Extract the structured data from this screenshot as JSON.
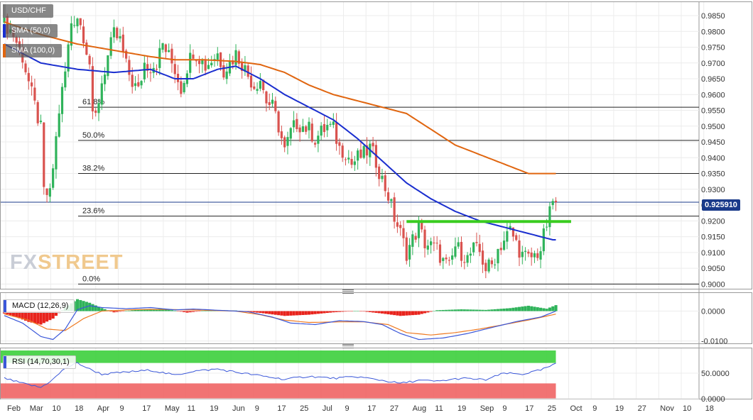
{
  "symbol": "USD/CHF",
  "legend": {
    "sma50": {
      "label": "SMA (50,0)",
      "color": "#1a2ecf"
    },
    "sma100": {
      "label": "SMA (100,0)",
      "color": "#e0650f"
    },
    "macd": {
      "label": "MACD (12,26,9)"
    },
    "rsi": {
      "label": "RSI (14,70,30,1)"
    }
  },
  "watermark": {
    "part1": "FX",
    "part2": "STREET"
  },
  "last_price": "0.925910",
  "colors": {
    "bull": "#2fb35a",
    "bear": "#d9534f",
    "support": "#39cc1f",
    "macd_line": "#3a57d9",
    "signal_line": "#ef7a22",
    "rsi_line": "#3a57d9",
    "rsi_over": "#3ccf3c",
    "rsi_under": "#f06464",
    "price_tag": "#1a3a8a"
  },
  "x_ticks": [
    "Feb",
    "Mar",
    "10",
    "18",
    "Apr",
    "9",
    "17",
    "May",
    "11",
    "19",
    "Jun",
    "9",
    "17",
    "25",
    "Jul",
    "9",
    "17",
    "27",
    "Aug",
    "11",
    "19",
    "Sep",
    "9",
    "17",
    "25",
    "Oct",
    "9",
    "19",
    "27",
    "Nov",
    "10",
    "18"
  ],
  "chart_data": [
    {
      "type": "candlestick",
      "title": "USD/CHF",
      "ylim": [
        0.8985,
        0.9895
      ],
      "y_ticks": [
        "0.9850",
        "0.9800",
        "0.9750",
        "0.9700",
        "0.9650",
        "0.9600",
        "0.9550",
        "0.9500",
        "0.9450",
        "0.9400",
        "0.9350",
        "0.9300",
        "0.9250",
        "0.9200",
        "0.9150",
        "0.9100",
        "0.9050",
        "0.9000"
      ],
      "fibonacci": [
        {
          "label": "61.8%",
          "value": 0.956
        },
        {
          "label": "50.0%",
          "value": 0.9455
        },
        {
          "label": "38.2%",
          "value": 0.935
        },
        {
          "label": "23.6%",
          "value": 0.9215
        },
        {
          "label": "0.0%",
          "value": 0.9
        }
      ],
      "support_line": {
        "value": 0.9198,
        "from_day": 132,
        "to_day": 186
      },
      "current_price": 0.92591,
      "ohlc_anchors": [
        [
          0,
          0.983
        ],
        [
          3,
          0.979
        ],
        [
          6,
          0.972
        ],
        [
          9,
          0.96
        ],
        [
          12,
          0.949
        ],
        [
          13,
          0.929
        ],
        [
          15,
          0.928
        ],
        [
          18,
          0.955
        ],
        [
          20,
          0.967
        ],
        [
          22,
          0.983
        ],
        [
          24,
          0.985
        ],
        [
          26,
          0.979
        ],
        [
          28,
          0.97
        ],
        [
          29,
          0.952
        ],
        [
          30,
          0.953
        ],
        [
          32,
          0.964
        ],
        [
          34,
          0.972
        ],
        [
          36,
          0.979
        ],
        [
          38,
          0.977
        ],
        [
          40,
          0.969
        ],
        [
          42,
          0.964
        ],
        [
          44,
          0.961
        ],
        [
          46,
          0.97
        ],
        [
          48,
          0.969
        ],
        [
          50,
          0.97
        ],
        [
          52,
          0.976
        ],
        [
          54,
          0.972
        ],
        [
          56,
          0.968
        ],
        [
          58,
          0.962
        ],
        [
          60,
          0.969
        ],
        [
          62,
          0.974
        ],
        [
          64,
          0.972
        ],
        [
          66,
          0.969
        ],
        [
          68,
          0.971
        ],
        [
          70,
          0.973
        ],
        [
          72,
          0.968
        ],
        [
          74,
          0.97
        ],
        [
          76,
          0.973
        ],
        [
          78,
          0.97
        ],
        [
          80,
          0.966
        ],
        [
          82,
          0.963
        ],
        [
          84,
          0.965
        ],
        [
          86,
          0.958
        ],
        [
          88,
          0.956
        ],
        [
          90,
          0.95
        ],
        [
          92,
          0.942
        ],
        [
          94,
          0.948
        ],
        [
          96,
          0.951
        ],
        [
          98,
          0.95
        ],
        [
          100,
          0.949
        ],
        [
          102,
          0.946
        ],
        [
          104,
          0.948
        ],
        [
          106,
          0.95
        ],
        [
          108,
          0.949
        ],
        [
          110,
          0.943
        ],
        [
          112,
          0.942
        ],
        [
          114,
          0.938
        ],
        [
          116,
          0.94
        ],
        [
          118,
          0.941
        ],
        [
          120,
          0.943
        ],
        [
          122,
          0.939
        ],
        [
          124,
          0.933
        ],
        [
          126,
          0.928
        ],
        [
          128,
          0.921
        ],
        [
          130,
          0.916
        ],
        [
          132,
          0.91
        ],
        [
          134,
          0.914
        ],
        [
          136,
          0.918
        ],
        [
          138,
          0.913
        ],
        [
          140,
          0.912
        ],
        [
          142,
          0.911
        ],
        [
          144,
          0.907
        ],
        [
          146,
          0.905
        ],
        [
          148,
          0.912
        ],
        [
          150,
          0.91
        ],
        [
          152,
          0.908
        ],
        [
          154,
          0.911
        ],
        [
          156,
          0.91
        ],
        [
          158,
          0.905
        ],
        [
          160,
          0.906
        ],
        [
          162,
          0.911
        ],
        [
          164,
          0.914
        ],
        [
          166,
          0.917
        ],
        [
          168,
          0.913
        ],
        [
          170,
          0.909
        ],
        [
          172,
          0.908
        ],
        [
          174,
          0.909
        ],
        [
          176,
          0.911
        ],
        [
          177,
          0.915
        ],
        [
          178,
          0.919
        ],
        [
          179,
          0.922
        ],
        [
          180,
          0.9265
        ],
        [
          181,
          0.92591
        ]
      ],
      "sma50_anchors": [
        [
          0,
          0.976
        ],
        [
          12,
          0.97
        ],
        [
          24,
          0.968
        ],
        [
          36,
          0.967
        ],
        [
          48,
          0.968
        ],
        [
          56,
          0.965
        ],
        [
          62,
          0.965
        ],
        [
          70,
          0.968
        ],
        [
          76,
          0.969
        ],
        [
          84,
          0.965
        ],
        [
          92,
          0.96
        ],
        [
          100,
          0.956
        ],
        [
          108,
          0.952
        ],
        [
          116,
          0.946
        ],
        [
          124,
          0.939
        ],
        [
          132,
          0.932
        ],
        [
          140,
          0.927
        ],
        [
          148,
          0.923
        ],
        [
          156,
          0.92
        ],
        [
          164,
          0.918
        ],
        [
          172,
          0.916
        ],
        [
          180,
          0.914
        ]
      ],
      "sma100_anchors": [
        [
          0,
          0.983
        ],
        [
          12,
          0.979
        ],
        [
          24,
          0.976
        ],
        [
          36,
          0.974
        ],
        [
          48,
          0.972
        ],
        [
          56,
          0.971
        ],
        [
          66,
          0.971
        ],
        [
          76,
          0.9705
        ],
        [
          84,
          0.9695
        ],
        [
          92,
          0.967
        ],
        [
          100,
          0.963
        ],
        [
          108,
          0.96
        ],
        [
          116,
          0.958
        ],
        [
          124,
          0.956
        ],
        [
          132,
          0.954
        ],
        [
          140,
          0.949
        ],
        [
          148,
          0.944
        ],
        [
          156,
          0.941
        ],
        [
          164,
          0.938
        ],
        [
          172,
          0.935
        ],
        [
          180,
          0.935
        ]
      ]
    },
    {
      "type": "bar",
      "title": "MACD (12,26,9)",
      "ylim": [
        -0.0108,
        0.0063
      ],
      "y_ticks": [
        "0.0000",
        "-0.0100"
      ],
      "histogram_anchors": [
        [
          0,
          -0.0008
        ],
        [
          4,
          -0.002
        ],
        [
          8,
          -0.0036
        ],
        [
          12,
          -0.0045
        ],
        [
          16,
          -0.0025
        ],
        [
          20,
          0.0012
        ],
        [
          24,
          0.004
        ],
        [
          28,
          0.0028
        ],
        [
          32,
          0.001
        ],
        [
          36,
          -0.0004
        ],
        [
          44,
          0.0005
        ],
        [
          52,
          0.0008
        ],
        [
          60,
          -0.0005
        ],
        [
          68,
          0.0004
        ],
        [
          76,
          0.0002
        ],
        [
          84,
          -0.0006
        ],
        [
          92,
          -0.0016
        ],
        [
          100,
          -0.0012
        ],
        [
          108,
          -0.0004
        ],
        [
          116,
          0.0001
        ],
        [
          124,
          -0.0008
        ],
        [
          130,
          -0.0016
        ],
        [
          136,
          -0.0012
        ],
        [
          142,
          0.0003
        ],
        [
          150,
          0.0006
        ],
        [
          158,
          0.0004
        ],
        [
          166,
          0.001
        ],
        [
          172,
          0.0018
        ],
        [
          178,
          0.0008
        ],
        [
          181,
          0.002
        ]
      ],
      "macd_anchors": [
        [
          0,
          -0.0015
        ],
        [
          6,
          -0.004
        ],
        [
          12,
          -0.0085
        ],
        [
          16,
          -0.0095
        ],
        [
          20,
          -0.006
        ],
        [
          24,
          0.0005
        ],
        [
          28,
          0.0018
        ],
        [
          32,
          0.0012
        ],
        [
          40,
          0.0008
        ],
        [
          48,
          0.0012
        ],
        [
          56,
          0.0004
        ],
        [
          62,
          0.0007
        ],
        [
          72,
          0.0002
        ],
        [
          80,
          -0.0002
        ],
        [
          88,
          -0.002
        ],
        [
          94,
          -0.004
        ],
        [
          102,
          -0.0045
        ],
        [
          110,
          -0.0032
        ],
        [
          118,
          -0.0035
        ],
        [
          124,
          -0.0045
        ],
        [
          130,
          -0.0075
        ],
        [
          136,
          -0.0095
        ],
        [
          144,
          -0.009
        ],
        [
          152,
          -0.0075
        ],
        [
          160,
          -0.0055
        ],
        [
          168,
          -0.0035
        ],
        [
          176,
          -0.002
        ],
        [
          181,
          0.0
        ]
      ],
      "signal_anchors": [
        [
          0,
          -0.001
        ],
        [
          8,
          -0.003
        ],
        [
          14,
          -0.006
        ],
        [
          20,
          -0.0065
        ],
        [
          26,
          -0.0025
        ],
        [
          32,
          0.0
        ],
        [
          40,
          0.0004
        ],
        [
          48,
          0.0006
        ],
        [
          56,
          0.0005
        ],
        [
          66,
          0.0003
        ],
        [
          76,
          0.0
        ],
        [
          84,
          -0.0012
        ],
        [
          92,
          -0.003
        ],
        [
          100,
          -0.0038
        ],
        [
          110,
          -0.0036
        ],
        [
          118,
          -0.0036
        ],
        [
          126,
          -0.0045
        ],
        [
          132,
          -0.0072
        ],
        [
          140,
          -0.008
        ],
        [
          148,
          -0.0072
        ],
        [
          156,
          -0.006
        ],
        [
          164,
          -0.0045
        ],
        [
          172,
          -0.003
        ],
        [
          181,
          -0.001
        ]
      ]
    },
    {
      "type": "line",
      "title": "RSI (14,70,30,1)",
      "ylim": [
        0,
        100
      ],
      "overbought": 70,
      "oversold": 30,
      "y_ticks": [
        "50.0000",
        "0.0000"
      ],
      "rsi_anchors": [
        [
          0,
          40
        ],
        [
          6,
          30
        ],
        [
          12,
          22
        ],
        [
          16,
          38
        ],
        [
          20,
          60
        ],
        [
          24,
          70
        ],
        [
          28,
          58
        ],
        [
          32,
          48
        ],
        [
          40,
          52
        ],
        [
          48,
          56
        ],
        [
          56,
          46
        ],
        [
          62,
          54
        ],
        [
          70,
          58
        ],
        [
          76,
          52
        ],
        [
          84,
          45
        ],
        [
          92,
          38
        ],
        [
          100,
          44
        ],
        [
          108,
          40
        ],
        [
          116,
          43
        ],
        [
          124,
          36
        ],
        [
          130,
          30
        ],
        [
          136,
          36
        ],
        [
          142,
          34
        ],
        [
          150,
          40
        ],
        [
          158,
          37
        ],
        [
          164,
          50
        ],
        [
          170,
          48
        ],
        [
          176,
          56
        ],
        [
          181,
          68
        ]
      ]
    }
  ]
}
